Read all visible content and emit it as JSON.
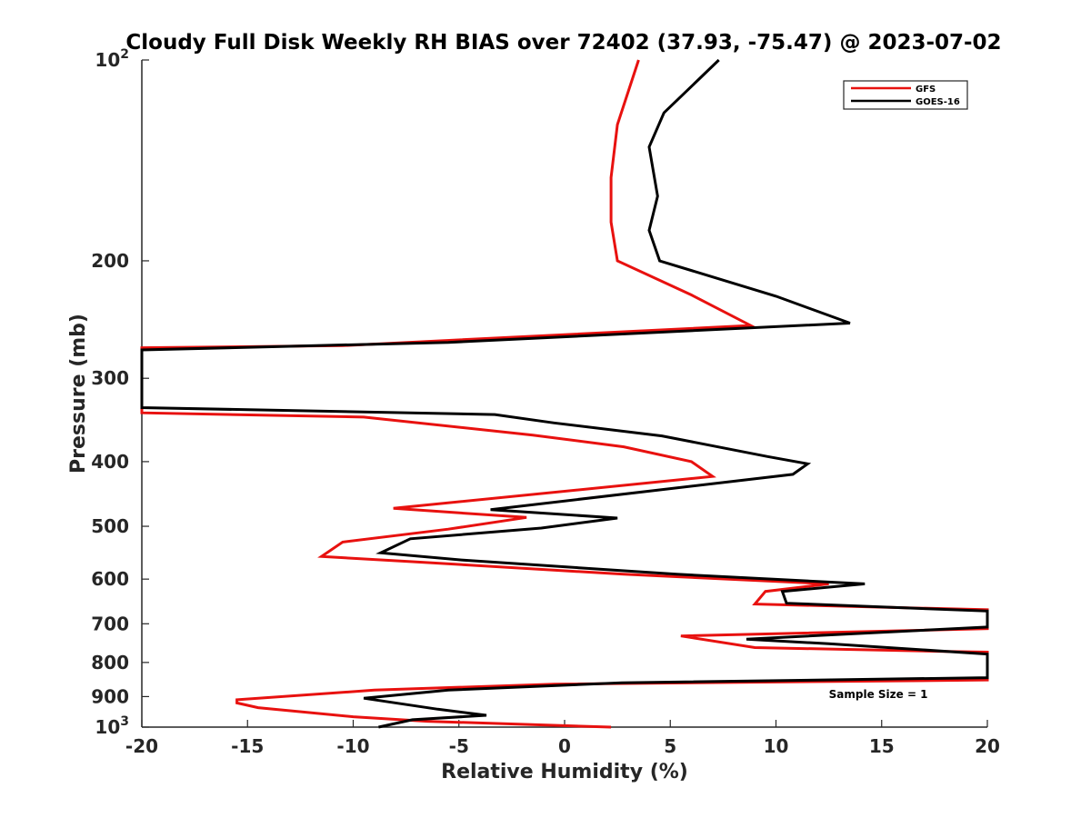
{
  "chart_data": {
    "type": "line",
    "title": "Cloudy Full Disk Weekly RH BIAS over 72402 (37.93, -75.47) @ 2023-07-02",
    "xlabel": "Relative Humidity (%)",
    "ylabel": "Pressure (mb)",
    "xlim": [
      -20,
      20
    ],
    "ylim": [
      100,
      1000
    ],
    "y_scale": "log",
    "y_reversed": true,
    "grid": false,
    "legend_position": "top-right",
    "x_ticks": [
      -20,
      -15,
      -10,
      -5,
      0,
      5,
      10,
      15,
      20
    ],
    "y_ticks": [
      {
        "value": 100,
        "base": "10",
        "exp": "2"
      },
      {
        "value": 200,
        "label": "200"
      },
      {
        "value": 300,
        "label": "300"
      },
      {
        "value": 400,
        "label": "400"
      },
      {
        "value": 500,
        "label": "500"
      },
      {
        "value": 600,
        "label": "600"
      },
      {
        "value": 700,
        "label": "700"
      },
      {
        "value": 800,
        "label": "800"
      },
      {
        "value": 900,
        "label": "900"
      },
      {
        "value": 1000,
        "base": "10",
        "exp": "3"
      }
    ],
    "series": [
      {
        "name": "GFS",
        "color": "#e8110f",
        "points": [
          [
            3.5,
            100
          ],
          [
            2.5,
            125
          ],
          [
            2.2,
            150
          ],
          [
            2.2,
            175
          ],
          [
            2.5,
            200
          ],
          [
            6.0,
            225
          ],
          [
            8.8,
            250
          ],
          [
            -10.5,
            268
          ],
          [
            -20,
            270
          ],
          [
            -20,
            338
          ],
          [
            -9.5,
            343
          ],
          [
            -1.5,
            365
          ],
          [
            2.8,
            380
          ],
          [
            6.0,
            400
          ],
          [
            7.0,
            421
          ],
          [
            -8.1,
            470
          ],
          [
            -1.8,
            485
          ],
          [
            -5.5,
            505
          ],
          [
            -10.5,
            528
          ],
          [
            -11.5,
            555
          ],
          [
            -7.2,
            565
          ],
          [
            2.8,
            590
          ],
          [
            12.5,
            610
          ],
          [
            9.5,
            626
          ],
          [
            9.0,
            654
          ],
          [
            20,
            667
          ],
          [
            20,
            712
          ],
          [
            5.5,
            730
          ],
          [
            9.0,
            760
          ],
          [
            18.0,
            770
          ],
          [
            20,
            772
          ],
          [
            20,
            850
          ],
          [
            -0.5,
            862
          ],
          [
            -9.0,
            880
          ],
          [
            -15.5,
            910
          ],
          [
            -15.5,
            920
          ],
          [
            -14.5,
            935
          ],
          [
            -10.0,
            965
          ],
          [
            -6.5,
            980
          ],
          [
            2.2,
            1000
          ]
        ]
      },
      {
        "name": "GOES-16",
        "color": "#000000",
        "points": [
          [
            7.3,
            100
          ],
          [
            4.7,
            120
          ],
          [
            4.0,
            135
          ],
          [
            4.4,
            160
          ],
          [
            4.0,
            180
          ],
          [
            4.5,
            200
          ],
          [
            10.0,
            226
          ],
          [
            13.5,
            248
          ],
          [
            -5.5,
            265
          ],
          [
            -20,
            272
          ],
          [
            -20,
            332
          ],
          [
            -3.3,
            340
          ],
          [
            -0.5,
            350
          ],
          [
            4.6,
            366
          ],
          [
            9.6,
            393
          ],
          [
            11.5,
            403
          ],
          [
            10.8,
            418
          ],
          [
            -3.5,
            472
          ],
          [
            2.5,
            486
          ],
          [
            -1.1,
            503
          ],
          [
            -7.3,
            522
          ],
          [
            -8.7,
            548
          ],
          [
            -4.8,
            562
          ],
          [
            5.3,
            590
          ],
          [
            14.2,
            610
          ],
          [
            10.3,
            626
          ],
          [
            10.5,
            652
          ],
          [
            20,
            670
          ],
          [
            20,
            708
          ],
          [
            8.6,
            738
          ],
          [
            12.5,
            750
          ],
          [
            20,
            777
          ],
          [
            20,
            843
          ],
          [
            2.7,
            858
          ],
          [
            -5.5,
            880
          ],
          [
            -9.5,
            905
          ],
          [
            -6.0,
            940
          ],
          [
            -3.7,
            960
          ],
          [
            -7.2,
            975
          ],
          [
            -8.8,
            1000
          ]
        ]
      }
    ],
    "annotations": [
      {
        "text": "Sample Size = 1",
        "x": 12.5,
        "y": 905
      }
    ]
  }
}
